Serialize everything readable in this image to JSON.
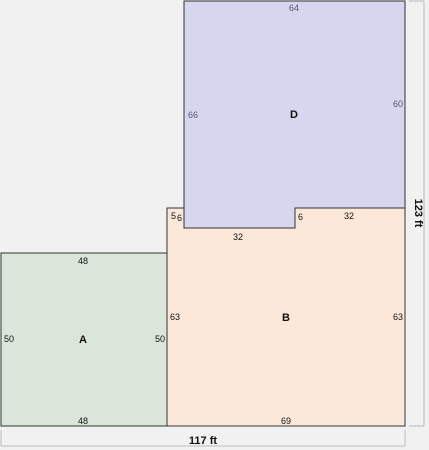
{
  "colors": {
    "background": "#f1f1f1",
    "region_a": "#d9e6d9",
    "region_b": "#fbe8d8",
    "region_d": "#d6d6ee",
    "outline": "#333333",
    "dimension_line": "#bbbbbb"
  },
  "regions": {
    "a": {
      "name": "A",
      "top": "48",
      "bottom": "48",
      "left": "50",
      "right": "50"
    },
    "b": {
      "name": "B",
      "left": "63",
      "right": "63",
      "bottom": "69",
      "top_left_step": "5",
      "top_left_notch": "6",
      "top_middle": "32",
      "top_notch": "6",
      "top_right": "32"
    },
    "d": {
      "name": "D",
      "top": "64",
      "left": "66",
      "right": "60"
    }
  },
  "dimensions": {
    "total_width": "117 ft",
    "total_height": "123 ft"
  }
}
